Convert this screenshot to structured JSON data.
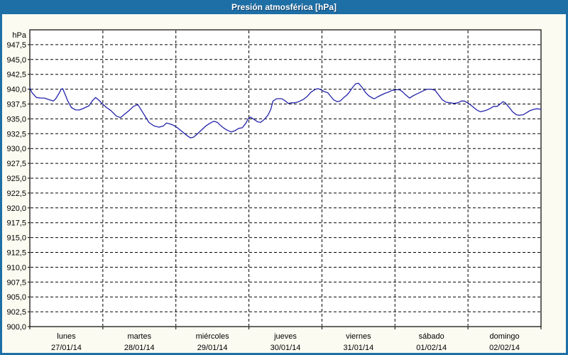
{
  "window": {
    "title": "Presión atmosférica [hPa]"
  },
  "colors": {
    "titlebar_bg": "#1d6fa5",
    "window_border": "#1d6fa5",
    "content_bg": "#fbfbf1",
    "plot_bg": "#ffffff",
    "plot_border": "#000000",
    "grid": "#000000",
    "line": "#2323aa",
    "axis_text": "#000000",
    "title_text": "#ffffff"
  },
  "chart_data": {
    "type": "line",
    "title": "Presión atmosférica [hPa]",
    "y_unit_label": "hPa",
    "ylabel": "hPa",
    "ylim": [
      900,
      950
    ],
    "ytick_step": 2.5,
    "decimal_separator": ",",
    "grid": "dashed",
    "legend": "none",
    "ytick_labels": [
      "947,5",
      "945,0",
      "942,5",
      "940,0",
      "937,5",
      "935,0",
      "932,5",
      "930,0",
      "927,5",
      "925,0",
      "922,5",
      "920,0",
      "917,5",
      "915,0",
      "912,5",
      "910,0",
      "907,5",
      "905,0",
      "902,5",
      "900,0"
    ],
    "x_days": [
      {
        "name": "lunes",
        "date": "27/01/14"
      },
      {
        "name": "martes",
        "date": "28/01/14"
      },
      {
        "name": "miércoles",
        "date": "29/01/14"
      },
      {
        "name": "jueves",
        "date": "30/01/14"
      },
      {
        "name": "viernes",
        "date": "31/01/14"
      },
      {
        "name": "sábado",
        "date": "01/02/14"
      },
      {
        "name": "domingo",
        "date": "02/02/14"
      }
    ],
    "series": [
      {
        "name": "Presión atmosférica [hPa]",
        "x_unit": "days from 27/01/14 00:00",
        "points": [
          [
            0.0,
            940.2
          ],
          [
            0.03,
            939.4
          ],
          [
            0.09,
            938.6
          ],
          [
            0.15,
            938.5
          ],
          [
            0.2,
            938.5
          ],
          [
            0.27,
            938.2
          ],
          [
            0.32,
            938.0
          ],
          [
            0.35,
            938.3
          ],
          [
            0.4,
            939.3
          ],
          [
            0.43,
            940.0
          ],
          [
            0.45,
            940.1
          ],
          [
            0.48,
            939.2
          ],
          [
            0.52,
            938.0
          ],
          [
            0.57,
            936.9
          ],
          [
            0.63,
            936.5
          ],
          [
            0.68,
            936.5
          ],
          [
            0.74,
            936.8
          ],
          [
            0.81,
            937.2
          ],
          [
            0.86,
            938.1
          ],
          [
            0.9,
            938.6
          ],
          [
            0.95,
            938.1
          ],
          [
            0.98,
            937.7
          ],
          [
            1.05,
            936.9
          ],
          [
            1.11,
            936.4
          ],
          [
            1.18,
            935.5
          ],
          [
            1.24,
            935.2
          ],
          [
            1.34,
            936.2
          ],
          [
            1.42,
            937.1
          ],
          [
            1.48,
            937.4
          ],
          [
            1.56,
            935.8
          ],
          [
            1.63,
            934.4
          ],
          [
            1.7,
            933.8
          ],
          [
            1.77,
            933.6
          ],
          [
            1.83,
            933.8
          ],
          [
            1.87,
            934.3
          ],
          [
            1.93,
            934.1
          ],
          [
            1.97,
            933.9
          ],
          [
            2.02,
            933.5
          ],
          [
            2.09,
            932.8
          ],
          [
            2.15,
            932.2
          ],
          [
            2.2,
            931.8
          ],
          [
            2.24,
            931.9
          ],
          [
            2.28,
            932.3
          ],
          [
            2.34,
            933.0
          ],
          [
            2.41,
            933.8
          ],
          [
            2.47,
            934.3
          ],
          [
            2.52,
            934.6
          ],
          [
            2.57,
            934.4
          ],
          [
            2.61,
            933.9
          ],
          [
            2.65,
            933.5
          ],
          [
            2.7,
            933.1
          ],
          [
            2.76,
            932.8
          ],
          [
            2.81,
            933.0
          ],
          [
            2.86,
            933.4
          ],
          [
            2.91,
            933.5
          ],
          [
            2.96,
            934.3
          ],
          [
            2.99,
            935.0
          ],
          [
            3.02,
            935.3
          ],
          [
            3.07,
            934.9
          ],
          [
            3.12,
            934.5
          ],
          [
            3.16,
            934.4
          ],
          [
            3.21,
            934.9
          ],
          [
            3.26,
            935.6
          ],
          [
            3.3,
            936.6
          ],
          [
            3.33,
            938.0
          ],
          [
            3.38,
            938.4
          ],
          [
            3.45,
            938.4
          ],
          [
            3.5,
            938.0
          ],
          [
            3.54,
            937.6
          ],
          [
            3.58,
            937.7
          ],
          [
            3.62,
            937.7
          ],
          [
            3.66,
            937.8
          ],
          [
            3.7,
            938.0
          ],
          [
            3.75,
            938.3
          ],
          [
            3.8,
            938.8
          ],
          [
            3.85,
            939.5
          ],
          [
            3.9,
            939.9
          ],
          [
            3.94,
            940.1
          ],
          [
            3.99,
            939.9
          ],
          [
            4.03,
            939.6
          ],
          [
            4.08,
            939.4
          ],
          [
            4.12,
            938.8
          ],
          [
            4.16,
            938.2
          ],
          [
            4.21,
            937.9
          ],
          [
            4.25,
            938.0
          ],
          [
            4.3,
            938.6
          ],
          [
            4.34,
            939.0
          ],
          [
            4.37,
            939.4
          ],
          [
            4.42,
            940.3
          ],
          [
            4.46,
            940.9
          ],
          [
            4.5,
            941.0
          ],
          [
            4.55,
            940.3
          ],
          [
            4.6,
            939.4
          ],
          [
            4.64,
            938.9
          ],
          [
            4.69,
            938.5
          ],
          [
            4.72,
            938.4
          ],
          [
            4.76,
            938.7
          ],
          [
            4.81,
            939.0
          ],
          [
            4.86,
            939.3
          ],
          [
            4.91,
            939.5
          ],
          [
            4.96,
            939.8
          ],
          [
            5.01,
            939.9
          ],
          [
            5.06,
            939.9
          ],
          [
            5.1,
            939.6
          ],
          [
            5.14,
            939.1
          ],
          [
            5.2,
            938.5
          ],
          [
            5.25,
            938.9
          ],
          [
            5.3,
            939.2
          ],
          [
            5.35,
            939.5
          ],
          [
            5.4,
            939.8
          ],
          [
            5.44,
            940.0
          ],
          [
            5.5,
            940.0
          ],
          [
            5.55,
            939.8
          ],
          [
            5.6,
            939.0
          ],
          [
            5.65,
            938.2
          ],
          [
            5.7,
            937.8
          ],
          [
            5.76,
            937.7
          ],
          [
            5.81,
            937.6
          ],
          [
            5.86,
            937.7
          ],
          [
            5.91,
            938.0
          ],
          [
            5.95,
            938.0
          ],
          [
            5.98,
            937.8
          ],
          [
            6.03,
            937.4
          ],
          [
            6.08,
            936.9
          ],
          [
            6.12,
            936.5
          ],
          [
            6.17,
            936.2
          ],
          [
            6.21,
            936.3
          ],
          [
            6.26,
            936.5
          ],
          [
            6.31,
            936.8
          ],
          [
            6.35,
            937.1
          ],
          [
            6.4,
            937.1
          ],
          [
            6.45,
            937.6
          ],
          [
            6.48,
            937.9
          ],
          [
            6.51,
            937.7
          ],
          [
            6.56,
            937.0
          ],
          [
            6.61,
            936.2
          ],
          [
            6.66,
            935.7
          ],
          [
            6.7,
            935.6
          ],
          [
            6.76,
            935.7
          ],
          [
            6.81,
            936.1
          ],
          [
            6.85,
            936.4
          ],
          [
            6.9,
            936.6
          ],
          [
            6.95,
            936.7
          ],
          [
            7.0,
            936.6
          ]
        ]
      }
    ]
  }
}
